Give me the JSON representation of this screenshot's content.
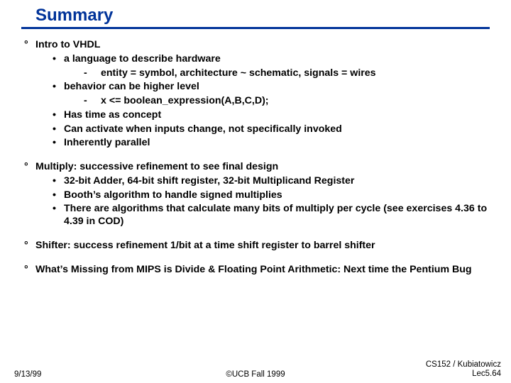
{
  "colors": {
    "title_text": "#003399",
    "rule": "#003399",
    "body_text": "#000000",
    "background": "#ffffff"
  },
  "title": "Summary",
  "bullets": {
    "deg": "°",
    "dot": "•",
    "dash": "-"
  },
  "sec1": {
    "h": "Intro to VHDL",
    "a": "a language to describe hardware",
    "a1": "entity = symbol, architecture ~ schematic, signals = wires",
    "b": "behavior can be higher level",
    "b1": "x <= boolean_expression(A,B,C,D);",
    "c": "Has time as concept",
    "d": "Can activate when inputs change, not specifically invoked",
    "e": "Inherently parallel"
  },
  "sec2": {
    "h": "Multiply: successive refinement to see final design",
    "a": "32-bit Adder, 64-bit shift register, 32-bit Multiplicand Register",
    "b": "Booth’s algorithm to handle signed multiplies",
    "c": "There are algorithms that calculate many bits of multiply per cycle (see exercises 4.36  to 4.39 in COD)"
  },
  "sec3": {
    "h": "Shifter: success refinement 1/bit at a time shift register to barrel shifter"
  },
  "sec4": {
    "h": "What’s Missing from MIPS is Divide & Floating Point Arithmetic: Next time the Pentium Bug"
  },
  "footer": {
    "left": "9/13/99",
    "center": "©UCB Fall 1999",
    "right1": "CS152 / Kubiatowicz",
    "right2": "Lec5.64"
  }
}
